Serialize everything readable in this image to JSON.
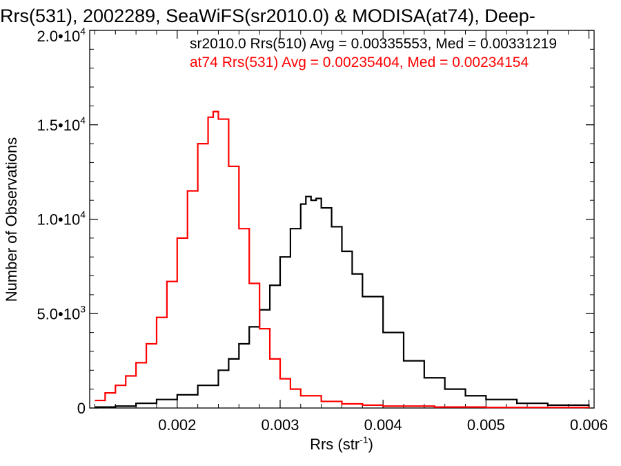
{
  "chart_data": {
    "type": "line",
    "title": "Rrs(531), 2002289, SeaWiFS(sr2010.0) & MODISA(at74), Deep-",
    "xlabel": "Rrs (str",
    "xlabel_sup": "-1",
    "xlabel_close": ")",
    "ylabel": "Number of Observations",
    "xlim": [
      0.00115,
      0.00605
    ],
    "ylim": [
      0,
      20000
    ],
    "x_ticks": [
      {
        "value": 0.002,
        "label": "0.002"
      },
      {
        "value": 0.003,
        "label": "0.003"
      },
      {
        "value": 0.004,
        "label": "0.004"
      },
      {
        "value": 0.005,
        "label": "0.005"
      },
      {
        "value": 0.006,
        "label": "0.006"
      }
    ],
    "y_ticks": [
      {
        "value": 0,
        "base": "0",
        "exp": ""
      },
      {
        "value": 5000,
        "base": "5.0•10",
        "exp": "3"
      },
      {
        "value": 10000,
        "base": "1.0•10",
        "exp": "4"
      },
      {
        "value": 15000,
        "base": "1.5•10",
        "exp": "4"
      },
      {
        "value": 20000,
        "base": "2.0•10",
        "exp": "4"
      }
    ],
    "legend": [
      {
        "text": "sr2010.0 Rrs(510) Avg = 0.00335553, Med = 0.00331219",
        "color": "#000000"
      },
      {
        "text": "at74 Rrs(531) Avg = 0.00235404, Med = 0.00234154",
        "color": "#ff0000"
      }
    ],
    "series": [
      {
        "color": "#000000",
        "x": [
          0.0012,
          0.0014,
          0.0016,
          0.0018,
          0.002,
          0.0022,
          0.0024,
          0.0025,
          0.0026,
          0.0027,
          0.0028,
          0.0029,
          0.003,
          0.0031,
          0.0032,
          0.00325,
          0.0033,
          0.00335,
          0.0034,
          0.0035,
          0.0036,
          0.0037,
          0.0038,
          0.004,
          0.0042,
          0.0044,
          0.0046,
          0.0048,
          0.005,
          0.0053,
          0.0056,
          0.006
        ],
        "y": [
          50,
          100,
          250,
          450,
          700,
          1200,
          2000,
          2600,
          3400,
          4300,
          5200,
          6500,
          8000,
          9500,
          10800,
          11200,
          11000,
          11100,
          10600,
          9600,
          8300,
          7100,
          5900,
          4000,
          2500,
          1600,
          1000,
          650,
          450,
          250,
          150,
          80
        ]
      },
      {
        "color": "#ff0000",
        "x": [
          0.0012,
          0.0013,
          0.0014,
          0.0015,
          0.0016,
          0.0017,
          0.0018,
          0.0019,
          0.002,
          0.0021,
          0.0022,
          0.0023,
          0.00235,
          0.0024,
          0.0025,
          0.0026,
          0.0027,
          0.0028,
          0.0029,
          0.003,
          0.0031,
          0.0032,
          0.0034,
          0.0036,
          0.0038,
          0.004,
          0.0045,
          0.005,
          0.006
        ],
        "y": [
          400,
          800,
          1200,
          1700,
          2400,
          3400,
          4800,
          6700,
          9000,
          11500,
          14000,
          15400,
          15700,
          15300,
          12800,
          9500,
          6600,
          4200,
          2600,
          1550,
          1000,
          650,
          350,
          220,
          150,
          100,
          50,
          30,
          10
        ]
      }
    ]
  }
}
